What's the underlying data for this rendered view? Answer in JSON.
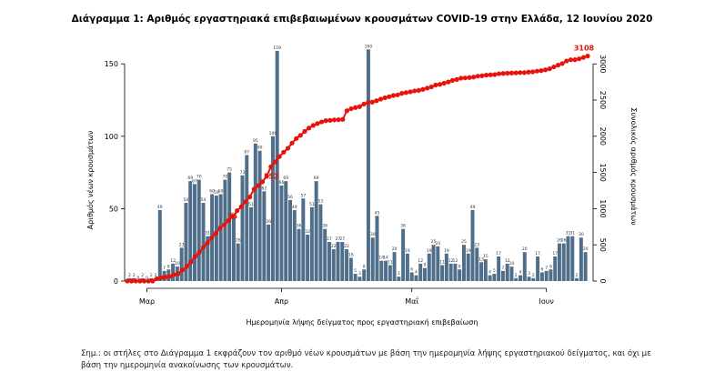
{
  "chart_data": {
    "type": "bar+line",
    "title": "Διάγραμμα 1: Αριθμός εργαστηριακά επιβεβαιωμένων κρουσμάτων COVID-19 στην Ελλάδα, 12 Ιουνίου 2020",
    "xlabel": "Ημερομηνία λήψης δείγματος προς εργαστηριακή επιβεβαίωση",
    "ylabel_left": "Αριθμός νέων κρουσμάτων",
    "ylabel_right": "Συνολικός αριθμός κρουσμάτων",
    "y_left_ticks": [
      "0",
      "50",
      "100",
      "150"
    ],
    "y_right_ticks": [
      "0",
      "500",
      "1000",
      "1500",
      "2000",
      "2500",
      "3000"
    ],
    "ylim_left": [
      0,
      169
    ],
    "ylim_right": [
      0,
      3380
    ],
    "x_month_labels": [
      "Μαρ",
      "Απρ",
      "Μαΐ",
      "Ιουν"
    ],
    "x_month_start_index": [
      4,
      35,
      65,
      96
    ],
    "grid": false,
    "colors": {
      "bars": "#4f6e8a",
      "cumulative": "#e8120c"
    },
    "series": [
      {
        "type": "bar",
        "values": [
          2,
          2,
          0,
          2,
          0,
          2,
          2,
          49,
          7,
          8,
          12,
          10,
          23,
          54,
          69,
          67,
          70,
          54,
          31,
          60,
          59,
          60,
          70,
          75,
          44,
          26,
          73,
          87,
          51,
          95,
          90,
          62,
          39,
          100,
          159,
          66,
          69,
          56,
          49,
          36,
          57,
          32,
          51,
          69,
          53,
          36,
          27,
          22,
          27,
          27,
          22,
          16,
          5,
          3,
          8,
          160,
          30,
          45,
          14,
          14,
          11,
          20,
          3,
          36,
          19,
          6,
          4,
          12,
          9,
          19,
          25,
          24,
          11,
          19,
          12,
          12,
          8,
          25,
          19,
          49,
          23,
          13,
          15,
          4,
          5,
          17,
          7,
          12,
          10,
          2,
          4,
          20,
          3,
          2,
          17,
          6,
          7,
          8,
          17,
          26,
          26,
          31,
          31,
          2,
          30,
          20
        ],
        "labels": [
          "2",
          "2",
          "0",
          "2",
          "0",
          "2",
          "2",
          "49",
          "7",
          "8",
          "12",
          "10",
          "23",
          "54",
          "69",
          "67",
          "70",
          "54",
          "31",
          "60",
          "59",
          "60",
          "70",
          "75",
          "44",
          "26",
          "73",
          "87",
          "51",
          "95",
          "90",
          "62",
          "39",
          "100",
          "159",
          "66",
          "69",
          "56",
          "49",
          "36",
          "57",
          "32",
          "51",
          "69",
          "53",
          "36",
          "27",
          "22",
          "27",
          "27",
          "22",
          "16",
          "5",
          "3",
          "8",
          "160",
          "30",
          "45",
          "14",
          "14",
          "11",
          "20",
          "3",
          "36",
          "19",
          "6",
          "4",
          "12",
          "9",
          "19",
          "25",
          "24",
          "11",
          "19",
          "12",
          "12",
          "8",
          "25",
          "19",
          "49",
          "23",
          "13",
          "15",
          "4",
          "5",
          "17",
          "7",
          "12",
          "10",
          "2",
          "4",
          "20",
          "3",
          "2",
          "17",
          "6",
          "7",
          "8",
          "17",
          "26",
          "26",
          "31",
          "31",
          "2",
          "30",
          "20"
        ]
      },
      {
        "type": "line",
        "values": [
          0,
          0,
          0,
          0,
          0,
          0,
          0,
          32,
          47,
          55,
          62,
          89,
          101,
          152,
          199,
          261,
          336,
          394,
          466,
          528,
          601,
          663,
          735,
          778,
          838,
          893,
          972,
          1028,
          1097,
          1161,
          1270,
          1318,
          1371,
          1451,
          1579,
          1646,
          1719,
          1779,
          1834,
          1906,
          1969,
          2013,
          2067,
          2114,
          2150,
          2175,
          2198,
          2216,
          2220,
          2226,
          2229,
          2233,
          2353,
          2380,
          2397,
          2409,
          2445,
          2464,
          2472,
          2491,
          2513,
          2532,
          2547,
          2563,
          2572,
          2593,
          2603,
          2614,
          2627,
          2634,
          2648,
          2665,
          2682,
          2708,
          2717,
          2733,
          2750,
          2772,
          2785,
          2802,
          2806,
          2811,
          2818,
          2831,
          2836,
          2845,
          2849,
          2852,
          2864,
          2868,
          2872,
          2874,
          2876,
          2880,
          2880,
          2887,
          2890,
          2900,
          2906,
          2918,
          2932,
          2958,
          2983,
          3005,
          3040,
          3057,
          3058,
          3070,
          3089,
          3108
        ]
      }
    ],
    "annotations": [
      "76",
      "152",
      "3108"
    ]
  },
  "note": "Σημ.: οι στήλες στο Διάγραμμα 1 εκφράζουν τον αριθμό νέων κρουσμάτων με βάση την ημερομηνία λήψης εργαστηριακού δείγματος, και όχι με βάση την ημερομηνία ανακοίνωσης των κρουσμάτων."
}
